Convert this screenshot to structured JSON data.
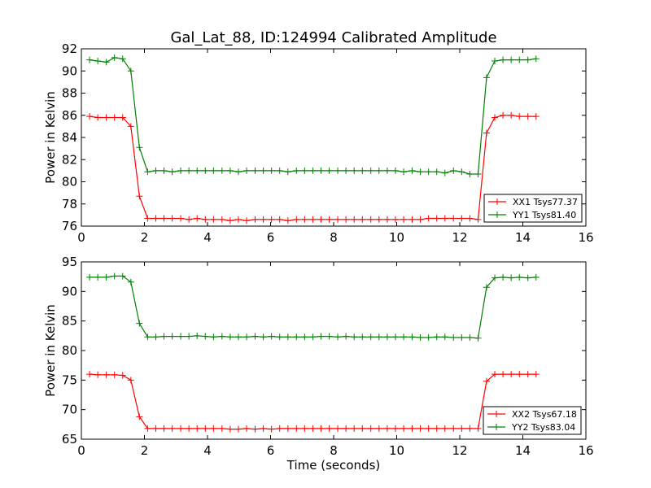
{
  "chart_data": [
    {
      "type": "line",
      "title": "Gal_Lat_88, ID:124994 Calibrated Amplitude",
      "xlabel": "",
      "ylabel": "Power in Kelvin",
      "xlim": [
        0,
        16
      ],
      "ylim": [
        76,
        92
      ],
      "xticks": [
        0,
        2,
        4,
        6,
        8,
        10,
        12,
        14,
        16
      ],
      "yticks": [
        76,
        78,
        80,
        82,
        84,
        86,
        88,
        90,
        92
      ],
      "legend": "lower-right",
      "x": [
        0.26,
        0.52,
        0.79,
        1.05,
        1.31,
        1.57,
        1.84,
        2.1,
        2.36,
        2.62,
        2.88,
        3.15,
        3.41,
        3.67,
        3.93,
        4.19,
        4.46,
        4.72,
        4.98,
        5.24,
        5.51,
        5.77,
        6.03,
        6.29,
        6.55,
        6.82,
        7.08,
        7.34,
        7.6,
        7.86,
        8.13,
        8.39,
        8.65,
        8.91,
        9.18,
        9.44,
        9.7,
        9.96,
        10.22,
        10.49,
        10.75,
        11.01,
        11.27,
        11.53,
        11.8,
        12.06,
        12.32,
        12.58,
        12.85,
        13.11,
        13.37,
        13.63,
        13.89,
        14.16,
        14.42
      ],
      "series": [
        {
          "name": "XX1 Tsys77.37",
          "color": "#ff0000",
          "values": [
            85.9,
            85.8,
            85.8,
            85.8,
            85.8,
            85.0,
            78.7,
            76.7,
            76.7,
            76.7,
            76.7,
            76.7,
            76.6,
            76.7,
            76.6,
            76.6,
            76.6,
            76.5,
            76.6,
            76.5,
            76.6,
            76.6,
            76.6,
            76.6,
            76.5,
            76.6,
            76.6,
            76.6,
            76.6,
            76.6,
            76.6,
            76.6,
            76.6,
            76.6,
            76.6,
            76.6,
            76.6,
            76.6,
            76.6,
            76.6,
            76.6,
            76.7,
            76.7,
            76.7,
            76.7,
            76.7,
            76.7,
            76.6,
            84.4,
            85.8,
            86.0,
            86.0,
            85.9,
            85.9,
            85.9
          ]
        },
        {
          "name": "YY1 Tsys81.40",
          "color": "#008000",
          "values": [
            91.0,
            90.9,
            90.8,
            91.2,
            91.1,
            90.0,
            83.1,
            80.9,
            81.0,
            81.0,
            80.9,
            81.0,
            81.0,
            81.0,
            81.0,
            81.0,
            81.0,
            81.0,
            80.9,
            81.0,
            81.0,
            81.0,
            81.0,
            81.0,
            80.9,
            81.0,
            81.0,
            81.0,
            81.0,
            81.0,
            81.0,
            81.0,
            81.0,
            81.0,
            81.0,
            81.0,
            81.0,
            81.0,
            80.9,
            81.0,
            80.9,
            80.9,
            80.9,
            80.8,
            81.0,
            80.9,
            80.7,
            80.7,
            89.4,
            90.9,
            91.0,
            91.0,
            91.0,
            91.0,
            91.1
          ]
        }
      ]
    },
    {
      "type": "line",
      "title": "",
      "xlabel": "Time (seconds)",
      "ylabel": "Power in Kelvin",
      "xlim": [
        0,
        16
      ],
      "ylim": [
        65,
        95
      ],
      "xticks": [
        0,
        2,
        4,
        6,
        8,
        10,
        12,
        14,
        16
      ],
      "yticks": [
        65,
        70,
        75,
        80,
        85,
        90,
        95
      ],
      "legend": "lower-right",
      "x": [
        0.26,
        0.52,
        0.79,
        1.05,
        1.31,
        1.57,
        1.84,
        2.1,
        2.36,
        2.62,
        2.88,
        3.15,
        3.41,
        3.67,
        3.93,
        4.19,
        4.46,
        4.72,
        4.98,
        5.24,
        5.51,
        5.77,
        6.03,
        6.29,
        6.55,
        6.82,
        7.08,
        7.34,
        7.6,
        7.86,
        8.13,
        8.39,
        8.65,
        8.91,
        9.18,
        9.44,
        9.7,
        9.96,
        10.22,
        10.49,
        10.75,
        11.01,
        11.27,
        11.53,
        11.8,
        12.06,
        12.32,
        12.58,
        12.85,
        13.11,
        13.37,
        13.63,
        13.89,
        14.16,
        14.42
      ],
      "series": [
        {
          "name": "XX2 Tsys67.18",
          "color": "#ff0000",
          "values": [
            76.0,
            75.9,
            75.9,
            75.9,
            75.8,
            75.0,
            68.8,
            66.8,
            66.8,
            66.8,
            66.8,
            66.8,
            66.8,
            66.8,
            66.8,
            66.8,
            66.8,
            66.7,
            66.7,
            66.8,
            66.7,
            66.8,
            66.7,
            66.8,
            66.8,
            66.8,
            66.8,
            66.8,
            66.8,
            66.8,
            66.8,
            66.8,
            66.8,
            66.8,
            66.8,
            66.8,
            66.8,
            66.8,
            66.8,
            66.8,
            66.8,
            66.8,
            66.8,
            66.8,
            66.8,
            66.8,
            66.8,
            66.8,
            74.8,
            76.0,
            76.0,
            76.0,
            76.0,
            76.0,
            76.0
          ]
        },
        {
          "name": "YY2 Tsys83.04",
          "color": "#008000",
          "values": [
            92.4,
            92.4,
            92.4,
            92.6,
            92.6,
            91.6,
            84.6,
            82.3,
            82.3,
            82.4,
            82.4,
            82.4,
            82.4,
            82.5,
            82.4,
            82.3,
            82.4,
            82.3,
            82.3,
            82.3,
            82.4,
            82.3,
            82.4,
            82.3,
            82.3,
            82.3,
            82.3,
            82.3,
            82.4,
            82.4,
            82.3,
            82.4,
            82.3,
            82.3,
            82.3,
            82.3,
            82.3,
            82.3,
            82.3,
            82.3,
            82.2,
            82.2,
            82.3,
            82.3,
            82.2,
            82.2,
            82.2,
            82.1,
            90.7,
            92.3,
            92.4,
            92.3,
            92.4,
            92.3,
            92.4
          ]
        }
      ]
    }
  ]
}
